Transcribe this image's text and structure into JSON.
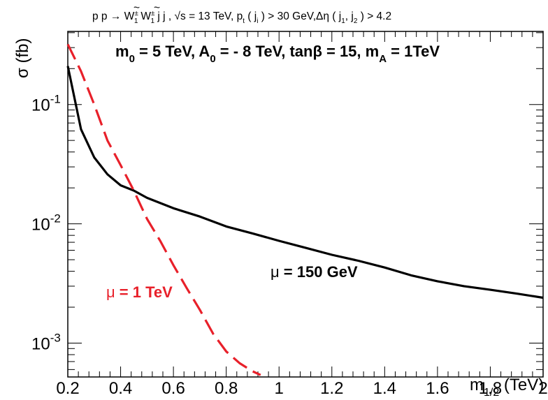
{
  "chart_data": {
    "type": "line",
    "title_parts": {
      "process": "p p → ",
      "W": "W",
      "tilde": "~",
      "charge": "±",
      "sub1": "1",
      "jets": " j j , ",
      "sqrt": "√s = 13 TeV, p",
      "pt_sub": "t",
      "pt_cut_open": " ( j",
      "pt_cut_sub": "i",
      "pt_cut_close": " ) > 30 GeV,Δη ( j",
      "eta_sub1": "1",
      "comma": ", j",
      "eta_sub2": "2",
      "eta_close": " ) > 4.2"
    },
    "params_parts": {
      "m0_main": "m",
      "m0_sub": "0",
      "m0_val": " = 5 TeV, A",
      "a0_sub": "0",
      "a0_val": " = - 8 TeV, tanβ = 15, m",
      "ma_sub": "A",
      "ma_val": " = 1TeV"
    },
    "xlabel_main": "m",
    "xlabel_sub": "1/2",
    "xlabel_unit": " (TeV)",
    "ylabel": "σ (fb)",
    "x_ticks": [
      "0.2",
      "0.4",
      "0.6",
      "0.8",
      "1",
      "1.2",
      "1.4",
      "1.6",
      "1.8",
      "2"
    ],
    "x_tick_values": [
      0.2,
      0.4,
      0.6,
      0.8,
      1.0,
      1.2,
      1.4,
      1.6,
      1.8,
      2.0
    ],
    "y_ticks": [
      {
        "value": 0.1,
        "base": "10",
        "exp": "-1"
      },
      {
        "value": 0.01,
        "base": "10",
        "exp": "-2"
      },
      {
        "value": 0.001,
        "base": "10",
        "exp": "-3"
      }
    ],
    "xlim": [
      0.2,
      2.0
    ],
    "ylim": [
      0.00052,
      0.41
    ],
    "log_y": true,
    "grid": false,
    "series": [
      {
        "name": "μ = 150 GeV",
        "name_mu": "μ",
        "name_rest": " = 150 GeV",
        "color": "#000000",
        "style": "solid",
        "x": [
          0.2,
          0.25,
          0.3,
          0.35,
          0.4,
          0.45,
          0.5,
          0.6,
          0.7,
          0.8,
          0.9,
          1.0,
          1.1,
          1.2,
          1.3,
          1.4,
          1.5,
          1.6,
          1.7,
          1.8,
          1.9,
          2.0
        ],
        "y": [
          0.21,
          0.062,
          0.036,
          0.026,
          0.021,
          0.019,
          0.0165,
          0.0135,
          0.0115,
          0.0095,
          0.0083,
          0.0072,
          0.0063,
          0.0055,
          0.0049,
          0.0043,
          0.0037,
          0.0033,
          0.003,
          0.0028,
          0.0026,
          0.0024
        ]
      },
      {
        "name": "μ = 1 TeV",
        "name_mu": "μ",
        "name_rest": " = 1 TeV",
        "color": "#e8202a",
        "style": "dashed",
        "x": [
          0.2,
          0.25,
          0.3,
          0.35,
          0.4,
          0.45,
          0.5,
          0.55,
          0.6,
          0.65,
          0.7,
          0.75,
          0.8,
          0.85,
          0.9,
          0.93
        ],
        "y": [
          0.32,
          0.19,
          0.1,
          0.05,
          0.031,
          0.019,
          0.011,
          0.0072,
          0.0045,
          0.0029,
          0.0019,
          0.0012,
          0.00085,
          0.00068,
          0.00058,
          0.00054
        ]
      }
    ]
  }
}
